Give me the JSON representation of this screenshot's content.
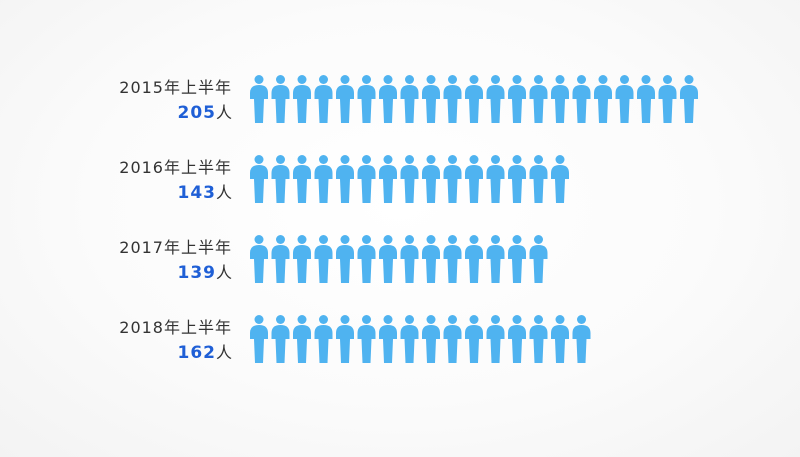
{
  "chart_data": {
    "type": "pictogram",
    "icon": "person-icon",
    "icon_color": "#4fb3f0",
    "value_color": "#1f5fd6",
    "unit": "人",
    "categories": [
      "2015年上半年",
      "2016年上半年",
      "2017年上半年",
      "2018年上半年"
    ],
    "values": [
      205,
      143,
      139,
      162
    ],
    "icons": [
      21,
      15,
      14,
      16
    ]
  }
}
